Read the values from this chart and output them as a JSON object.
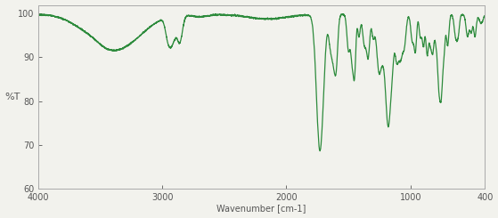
{
  "title": "",
  "xlabel": "Wavenumber [cm-1]",
  "ylabel": "%T",
  "xlim": [
    4000,
    400
  ],
  "ylim": [
    60,
    102
  ],
  "yticks": [
    60,
    70,
    80,
    90,
    100
  ],
  "xticks": [
    4000,
    3000,
    2000,
    1000,
    400
  ],
  "line_color": "#2d8b3c",
  "bg_color": "#f2f2ed",
  "line_width": 0.9,
  "spine_color": "#aaaaaa"
}
